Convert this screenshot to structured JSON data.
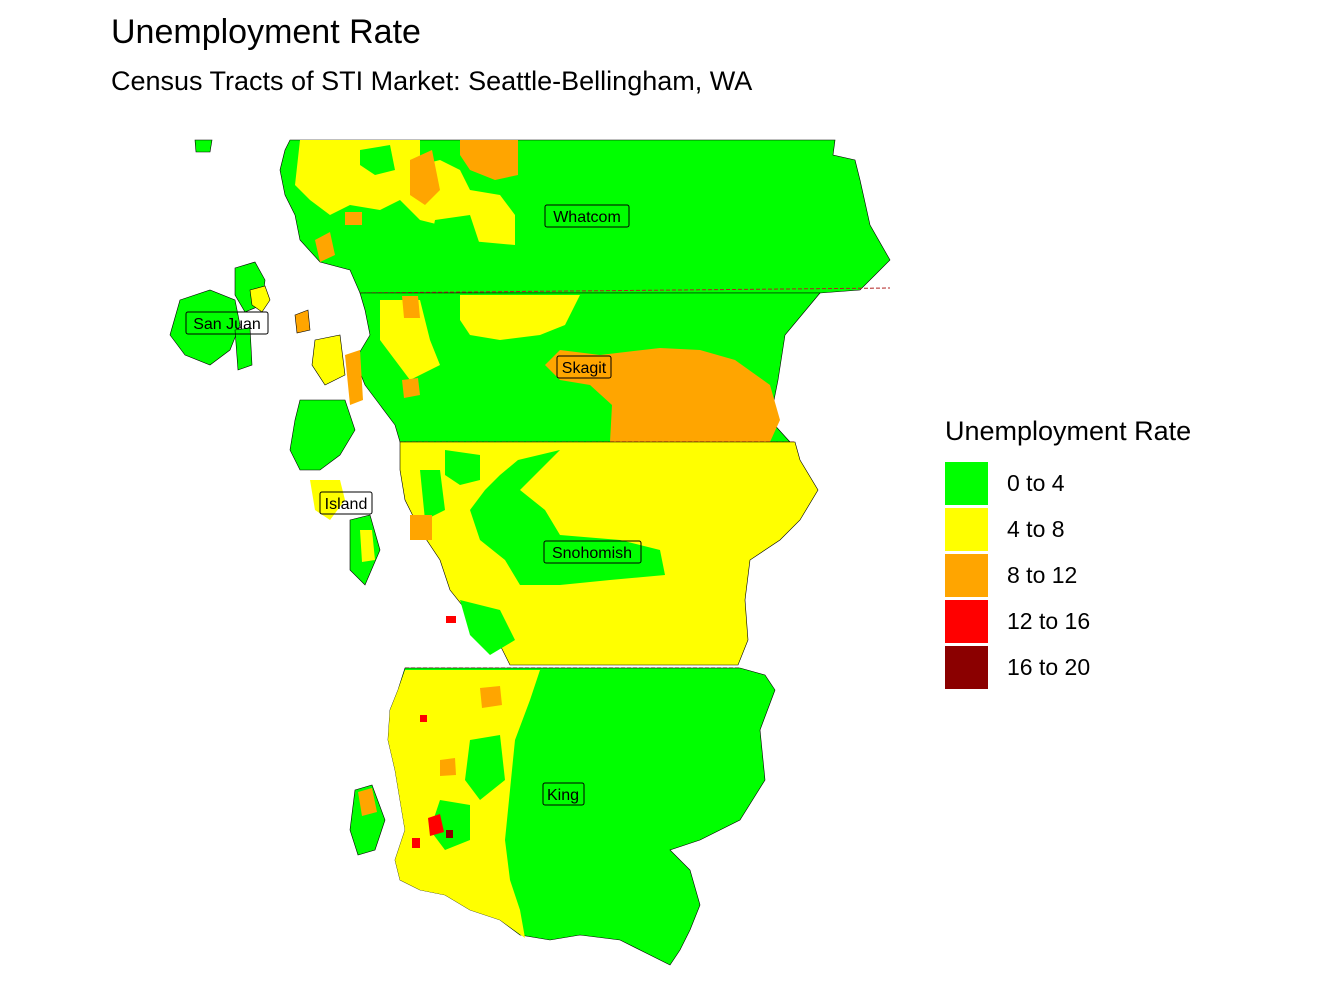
{
  "title": "Unemployment Rate",
  "subtitle": "Census Tracts of STI Market: Seattle-Bellingham, WA",
  "legend": {
    "title": "Unemployment Rate",
    "items": [
      {
        "label": "0 to 4",
        "color": "#00ff00"
      },
      {
        "label": "4 to 8",
        "color": "#ffff00"
      },
      {
        "label": "8 to 12",
        "color": "#ffa500"
      },
      {
        "label": "12 to 16",
        "color": "#ff0000"
      },
      {
        "label": "16 to 20",
        "color": "#8b0000"
      }
    ]
  },
  "counties": [
    {
      "name": "Whatcom"
    },
    {
      "name": "San Juan"
    },
    {
      "name": "Skagit"
    },
    {
      "name": "Island"
    },
    {
      "name": "Snohomish"
    },
    {
      "name": "King"
    }
  ],
  "colors": {
    "green": "#00ff00",
    "yellow": "#ffff00",
    "orange": "#ffa500",
    "red": "#ff0000",
    "darkred": "#8b0000",
    "county_border": "#b22222"
  }
}
